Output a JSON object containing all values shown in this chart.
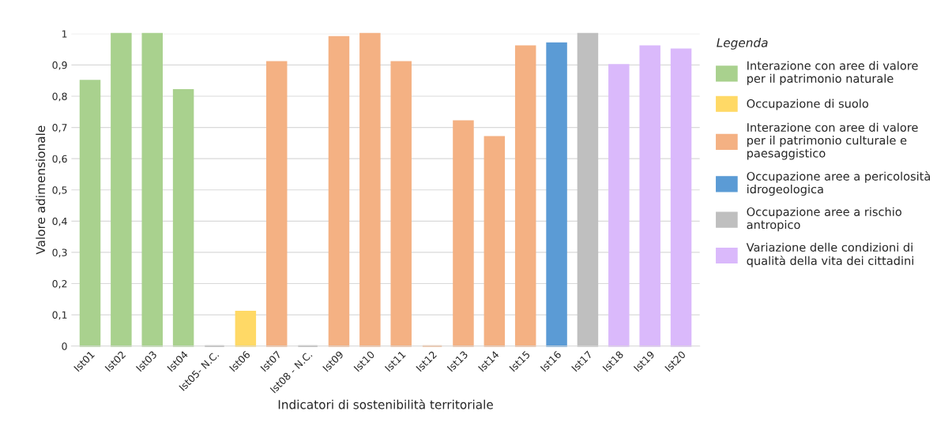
{
  "chart_data": {
    "type": "bar",
    "xlabel": "Indicatori di sostenibilità territoriale",
    "ylabel": "Valore adimensionale",
    "legend_title": "Legenda",
    "legend": "right",
    "categories": [
      "Ist01",
      "Ist02",
      "Ist03",
      "Ist04",
      "Ist05- N.C.",
      "Ist06",
      "Ist07",
      "Ist08 - N.C.",
      "Ist09",
      "Ist10",
      "Ist11",
      "Ist12",
      "Ist13",
      "Ist14",
      "Ist15",
      "Ist16",
      "Ist17",
      "Ist18",
      "Ist19",
      "Ist20"
    ],
    "series": [
      {
        "name": "Interazione con aree di valore\nper il patrimonio naturale",
        "color": "#a9d18e",
        "values": [
          0.85,
          1.0,
          1.0,
          0.82,
          null,
          null,
          null,
          null,
          null,
          null,
          null,
          null,
          null,
          null,
          null,
          null,
          null,
          null,
          null,
          null
        ]
      },
      {
        "name": "Occupazione di suolo",
        "color": "#ffd966",
        "values": [
          null,
          null,
          null,
          null,
          null,
          0.11,
          null,
          null,
          null,
          null,
          null,
          null,
          null,
          null,
          null,
          null,
          null,
          null,
          null,
          null
        ]
      },
      {
        "name": "Interazione con aree di valore\nper il patrimonio culturale e\npaesaggistico",
        "color": "#f4b183",
        "values": [
          null,
          null,
          null,
          null,
          null,
          null,
          0.91,
          null,
          0.99,
          1.0,
          0.91,
          0,
          0.72,
          0.67,
          0.96,
          null,
          null,
          null,
          null,
          null
        ]
      },
      {
        "name": "Occupazione aree a pericolosità\nidrogeologica",
        "color": "#5b9bd5",
        "values": [
          null,
          null,
          null,
          null,
          null,
          null,
          null,
          null,
          null,
          null,
          null,
          null,
          null,
          null,
          null,
          0.97,
          null,
          null,
          null,
          null
        ]
      },
      {
        "name": "Occupazione aree a rischio\nantropico",
        "color": "#bfbfbf",
        "values": [
          null,
          null,
          null,
          null,
          null,
          null,
          null,
          null,
          null,
          null,
          null,
          null,
          null,
          null,
          null,
          null,
          1.0,
          null,
          null,
          null
        ]
      },
      {
        "name": "Variazione delle condizioni di\nqualità della vita dei cittadini",
        "color": "#dab9fb",
        "values": [
          null,
          null,
          null,
          null,
          null,
          null,
          null,
          null,
          null,
          null,
          null,
          null,
          null,
          null,
          null,
          null,
          null,
          0.9,
          0.96,
          0.95
        ]
      },
      {
        "color": "#a6a6a6",
        "values": [
          null,
          null,
          null,
          null,
          0,
          null,
          null,
          0,
          null,
          null,
          null,
          null,
          null,
          null,
          null,
          null,
          null,
          null,
          null,
          null
        ]
      }
    ],
    "ylim": [
      0,
      1
    ],
    "yticks": [
      0,
      {
        "value": 0.1,
        "label": "0,1"
      },
      {
        "value": 0.2,
        "label": "0,2"
      },
      {
        "value": 0.3,
        "label": "0,3"
      },
      {
        "value": 0.4,
        "label": "0,4"
      },
      {
        "value": 0.5,
        "label": "0,5"
      },
      {
        "value": 0.6,
        "label": "0,6"
      },
      {
        "value": 0.7,
        "label": "0,7"
      },
      {
        "value": 0.8,
        "label": "0,8"
      },
      {
        "value": 0.9,
        "label": "0,9"
      },
      1
    ],
    "grid": "y"
  }
}
